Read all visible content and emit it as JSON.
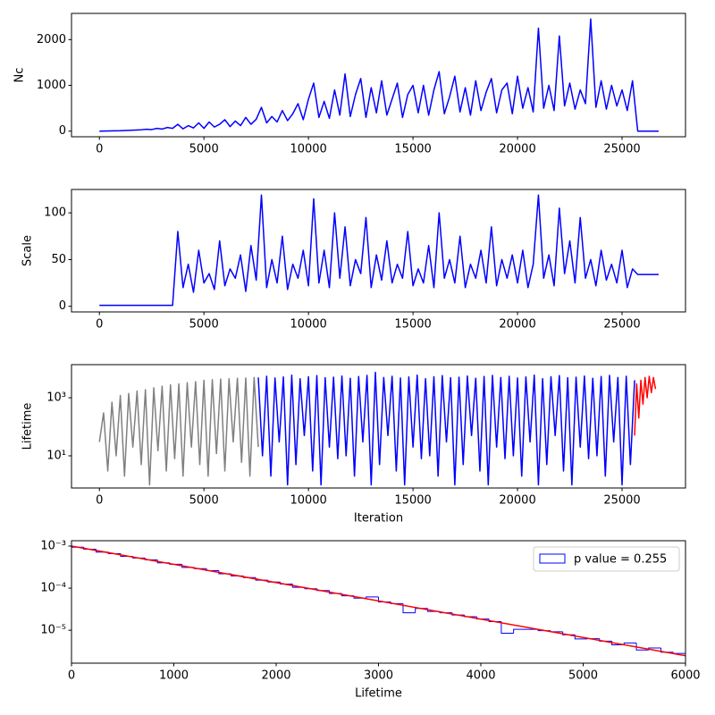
{
  "chart_data": [
    {
      "type": "line",
      "ylabel": "Nc",
      "x": [
        0,
        250,
        500,
        750,
        1000,
        1250,
        1500,
        1750,
        2000,
        2250,
        2500,
        2750,
        3000,
        3250,
        3500,
        3750,
        4000,
        4250,
        4500,
        4750,
        5000,
        5250,
        5500,
        5750,
        6000,
        6250,
        6500,
        6750,
        7000,
        7250,
        7500,
        7750,
        8000,
        8250,
        8500,
        8750,
        9000,
        9250,
        9500,
        9750,
        10000,
        10250,
        10500,
        10750,
        11000,
        11250,
        11500,
        11750,
        12000,
        12250,
        12500,
        12750,
        13000,
        13250,
        13500,
        13750,
        14000,
        14250,
        14500,
        14750,
        15000,
        15250,
        15500,
        15750,
        16000,
        16250,
        16500,
        16750,
        17000,
        17250,
        17500,
        17750,
        18000,
        18250,
        18500,
        18750,
        19000,
        19250,
        19500,
        19750,
        20000,
        20250,
        20500,
        20750,
        21000,
        21250,
        21500,
        21750,
        22000,
        22250,
        22500,
        22750,
        23000,
        23250,
        23500,
        23750,
        24000,
        24250,
        24500,
        24750,
        25000,
        25250,
        25500,
        25750,
        26000,
        26250,
        26500,
        26750
      ],
      "series": [
        {
          "color": "#0000ff",
          "values": [
            0,
            2,
            5,
            8,
            10,
            15,
            20,
            25,
            30,
            40,
            35,
            60,
            45,
            80,
            60,
            150,
            50,
            120,
            70,
            180,
            60,
            200,
            90,
            150,
            250,
            100,
            220,
            120,
            300,
            150,
            260,
            520,
            180,
            320,
            200,
            450,
            230,
            380,
            600,
            250,
            700,
            1050,
            300,
            650,
            280,
            900,
            350,
            1250,
            320,
            800,
            1150,
            300,
            950,
            400,
            1100,
            350,
            700,
            1050,
            300,
            800,
            1000,
            400,
            1000,
            350,
            900,
            1300,
            380,
            750,
            1200,
            420,
            950,
            350,
            1100,
            450,
            850,
            1150,
            400,
            900,
            1050,
            380,
            1200,
            500,
            950,
            420,
            2250,
            500,
            1000,
            450,
            2080,
            550,
            1050,
            480,
            900,
            600,
            2450,
            520,
            1100,
            480,
            1000,
            550,
            900,
            450,
            1100,
            0,
            0,
            0,
            0,
            0
          ]
        }
      ],
      "xlim": [
        -1335,
        28035
      ],
      "xticks": [
        0,
        5000,
        10000,
        15000,
        20000,
        25000
      ],
      "ylim": [
        -122.5,
        2572.5
      ],
      "yticks": [
        0,
        1000,
        2000
      ]
    },
    {
      "type": "line",
      "ylabel": "Scale",
      "x": [
        0,
        250,
        500,
        750,
        1000,
        1250,
        1500,
        1750,
        2000,
        2250,
        2500,
        2750,
        3000,
        3250,
        3500,
        3750,
        4000,
        4250,
        4500,
        4750,
        5000,
        5250,
        5500,
        5750,
        6000,
        6250,
        6500,
        6750,
        7000,
        7250,
        7500,
        7750,
        8000,
        8250,
        8500,
        8750,
        9000,
        9250,
        9500,
        9750,
        10000,
        10250,
        10500,
        10750,
        11000,
        11250,
        11500,
        11750,
        12000,
        12250,
        12500,
        12750,
        13000,
        13250,
        13500,
        13750,
        14000,
        14250,
        14500,
        14750,
        15000,
        15250,
        15500,
        15750,
        16000,
        16250,
        16500,
        16750,
        17000,
        17250,
        17500,
        17750,
        18000,
        18250,
        18500,
        18750,
        19000,
        19250,
        19500,
        19750,
        20000,
        20250,
        20500,
        20750,
        21000,
        21250,
        21500,
        21750,
        22000,
        22250,
        22500,
        22750,
        23000,
        23250,
        23500,
        23750,
        24000,
        24250,
        24500,
        24750,
        25000,
        25250,
        25500,
        25750,
        26000,
        26250,
        26500,
        26750
      ],
      "series": [
        {
          "color": "#0000ff",
          "values": [
            1,
            1,
            1,
            1,
            1,
            1,
            1,
            1,
            1,
            1,
            1,
            1,
            1,
            1,
            1,
            80,
            20,
            45,
            15,
            60,
            25,
            35,
            18,
            70,
            22,
            40,
            30,
            55,
            16,
            65,
            28,
            119,
            20,
            50,
            25,
            75,
            18,
            45,
            30,
            60,
            22,
            115,
            25,
            60,
            20,
            100,
            30,
            85,
            22,
            50,
            35,
            95,
            20,
            55,
            28,
            70,
            25,
            45,
            30,
            80,
            22,
            40,
            25,
            65,
            20,
            100,
            30,
            50,
            25,
            75,
            20,
            45,
            30,
            60,
            25,
            85,
            22,
            50,
            30,
            55,
            25,
            60,
            20,
            45,
            119,
            30,
            55,
            22,
            105,
            35,
            70,
            25,
            95,
            30,
            50,
            22,
            60,
            28,
            45,
            25,
            60,
            20,
            40,
            34,
            34,
            34,
            34,
            34
          ]
        }
      ],
      "xlim": [
        -1335,
        28035
      ],
      "xticks": [
        0,
        5000,
        10000,
        15000,
        20000,
        25000
      ],
      "ylim": [
        -6,
        125
      ],
      "yticks": [
        0,
        50,
        100
      ]
    },
    {
      "type": "line",
      "ylabel": "Lifetime",
      "xlabel": "Iteration",
      "yscale": "log",
      "series": [
        {
          "color": "#808080",
          "x": [
            0,
            200,
            400,
            600,
            800,
            1000,
            1200,
            1400,
            1600,
            1800,
            2000,
            2200,
            2400,
            2600,
            2800,
            3000,
            3200,
            3400,
            3600,
            3800,
            4000,
            4200,
            4400,
            4600,
            4800,
            5000,
            5200,
            5400,
            5600,
            5800,
            6000,
            6200,
            6400,
            6600,
            6800,
            7000,
            7200,
            7400,
            7600
          ],
          "values": [
            30,
            300,
            3,
            700,
            10,
            1200,
            2,
            1400,
            20,
            1700,
            5,
            1900,
            1,
            2200,
            15,
            2500,
            3,
            2800,
            8,
            3000,
            2,
            3300,
            20,
            3600,
            5,
            4000,
            2,
            4200,
            12,
            4400,
            3,
            4500,
            30,
            4700,
            6,
            4800,
            2,
            5000,
            20
          ]
        },
        {
          "color": "#0000ff",
          "x": [
            7600,
            7800,
            8000,
            8200,
            8400,
            8600,
            8800,
            9000,
            9200,
            9400,
            9600,
            9800,
            10000,
            10200,
            10400,
            10600,
            10800,
            11000,
            11200,
            11400,
            11600,
            11800,
            12000,
            12200,
            12400,
            12600,
            12800,
            13000,
            13200,
            13400,
            13600,
            13800,
            14000,
            14200,
            14400,
            14600,
            14800,
            15000,
            15200,
            15400,
            15600,
            15800,
            16000,
            16200,
            16400,
            16600,
            16800,
            17000,
            17200,
            17400,
            17600,
            17800,
            18000,
            18200,
            18400,
            18600,
            18800,
            19000,
            19200,
            19400,
            19600,
            19800,
            20000,
            20200,
            20400,
            20600,
            20800,
            21000,
            21200,
            21400,
            21600,
            21800,
            22000,
            22200,
            22400,
            22600,
            22800,
            23000,
            23200,
            23400,
            23600,
            23800,
            24000,
            24200,
            24400,
            24600,
            24800,
            25000,
            25200,
            25400,
            25600
          ],
          "values": [
            5000,
            10,
            5500,
            2,
            4800,
            30,
            5200,
            1,
            6000,
            5,
            4500,
            50,
            5300,
            3,
            5800,
            1,
            4900,
            20,
            5100,
            8,
            5600,
            10,
            4700,
            2,
            5400,
            30,
            5900,
            1,
            7500,
            5,
            5000,
            50,
            5500,
            3,
            4800,
            1,
            5200,
            20,
            6000,
            8,
            4500,
            10,
            5300,
            2,
            5800,
            30,
            4900,
            1,
            5100,
            5,
            5600,
            50,
            4700,
            3,
            5400,
            1,
            5900,
            20,
            5000,
            8,
            5500,
            10,
            4800,
            2,
            5200,
            30,
            6000,
            1,
            4500,
            5,
            5300,
            50,
            5800,
            3,
            4900,
            1,
            5100,
            20,
            5600,
            8,
            4700,
            10,
            5400,
            2,
            5900,
            30,
            5000,
            1,
            5500,
            5,
            4000
          ]
        },
        {
          "color": "#ff0000",
          "x": [
            25600,
            25700,
            25800,
            25900,
            26000,
            26100,
            26200,
            26300,
            26400,
            26500,
            26600
          ],
          "values": [
            50,
            3000,
            200,
            4000,
            600,
            5000,
            1000,
            5500,
            1500,
            5000,
            2000
          ]
        }
      ],
      "xlim": [
        -1335,
        28035
      ],
      "xticks": [
        0,
        5000,
        10000,
        15000,
        20000,
        25000
      ],
      "ylim": [
        0.78,
        13800
      ],
      "yticks": [
        {
          "value": 10,
          "label": "10¹"
        },
        {
          "value": 1000,
          "label": "10³"
        }
      ]
    },
    {
      "type": "histogram",
      "xlabel": "Lifetime",
      "yscale": "log",
      "legend": "upper right",
      "bins": [
        0,
        120,
        240,
        360,
        480,
        600,
        720,
        840,
        960,
        1080,
        1200,
        1320,
        1440,
        1560,
        1680,
        1800,
        1920,
        2040,
        2160,
        2280,
        2400,
        2520,
        2640,
        2760,
        2880,
        3000,
        3120,
        3240,
        3360,
        3480,
        3600,
        3720,
        3840,
        3960,
        4080,
        4200,
        4320,
        4440,
        4560,
        4680,
        4800,
        4920,
        5040,
        5160,
        5280,
        5400,
        5520,
        5640,
        5760,
        5880,
        6000
      ],
      "series": [
        {
          "name": "p value = 0.255",
          "color": "#0000ff",
          "values": [
            0.00094,
            0.00084,
            0.00072,
            0.00066,
            0.00057,
            0.00052,
            0.00047,
            0.0004,
            0.00037,
            0.00031,
            0.00029,
            0.00026,
            0.00022,
            0.000195,
            0.000178,
            0.000155,
            0.00014,
            0.000125,
            0.000105,
            9.65e-05,
            8.75e-05,
            7.5e-05,
            6.6e-05,
            5.8e-05,
            6.2e-05,
            4.7e-05,
            4.3e-05,
            2.6e-05,
            3.3e-05,
            2.8e-05,
            2.6e-05,
            2.3e-05,
            2.1e-05,
            1.85e-05,
            1.6e-05,
            8.5e-06,
            1.05e-05,
            1.05e-05,
            9.8e-06,
            9.2e-06,
            7.8e-06,
            6.2e-06,
            6.3e-06,
            5.5e-06,
            4.5e-06,
            5e-06,
            3.4e-06,
            3.8e-06,
            3e-06,
            2.8e-06
          ]
        }
      ],
      "fit": {
        "color": "#ff0000",
        "x": [
          0,
          6000
        ],
        "values": [
          0.001,
          2.48e-06
        ]
      },
      "xlim": [
        0,
        6000
      ],
      "xticks": [
        0,
        1000,
        2000,
        3000,
        4000,
        5000,
        6000
      ],
      "ylim": [
        1.65e-06,
        0.00134
      ],
      "yticks": [
        {
          "value": 1e-05,
          "label": "10⁻⁵"
        },
        {
          "value": 0.0001,
          "label": "10⁻⁴"
        },
        {
          "value": 0.001,
          "label": "10⁻³"
        }
      ]
    }
  ]
}
